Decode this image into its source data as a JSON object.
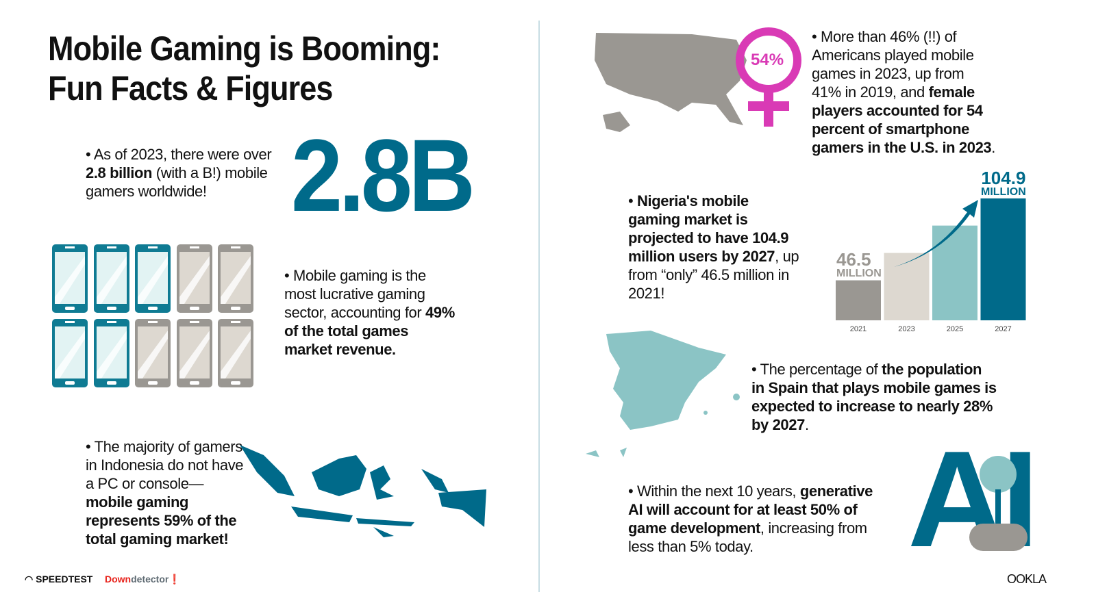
{
  "title": [
    "Mobile Gaming is Booming:",
    "Fun Facts & Figures"
  ],
  "big_number": "2.8B",
  "facts": {
    "gamers": {
      "bullet": "•",
      "pre": "As of 2023, there were over ",
      "bold": "2.8 billion",
      "post": " (with a B!) mobile gamers worldwide!"
    },
    "revenue": {
      "pre": "Mobile gaming is the most lucrative gaming sector, accounting for ",
      "bold": "49% of the total games market revenue."
    },
    "indonesia": {
      "pre": "The majority of gamers in Indonesia do not have a PC or console—",
      "bold": "mobile gaming represents 59% of the total gaming market!"
    },
    "us": {
      "pre": "More than 46% (!!) of Americans played mobile games in 2023, up from 41% in 2019, and ",
      "bold": "female players accounted for 54 percent of smartphone gamers in the U.S. in 2023",
      "post": "."
    },
    "nigeria": {
      "bold": "Nigeria's mobile gaming market is projected to have 104.9 million users by 2027",
      "post": ", up from “only” 46.5 million in 2021!"
    },
    "spain": {
      "pre": "The percentage of ",
      "bold": "the population in Spain that plays mobile games is expected to increase to nearly 28% by 2027",
      "post": "."
    },
    "ai": {
      "pre": "Within the next 10 years, ",
      "bold": "generative AI will account for at least 50% of game development",
      "post": ", increasing from less than 5% today."
    }
  },
  "phones": {
    "filled": 5,
    "total": 10,
    "note": "49%",
    "colors": {
      "filled": "#0f7b93",
      "empty": "#9a9792"
    }
  },
  "female_badge": "54%",
  "chart_data": {
    "type": "bar",
    "categories": [
      "2021",
      "2023",
      "2025",
      "2027"
    ],
    "values": [
      46.5,
      66,
      85.5,
      104.9
    ],
    "labels": {
      "first_value": "46.5",
      "first_unit": "MILLION",
      "last_value": "104.9",
      "last_unit": "MILLION"
    },
    "colors": [
      "#9a9792",
      "#ddd8d0",
      "#8bc4c5",
      "#006a8a"
    ],
    "grid": false
  },
  "ai_graphic": "AI",
  "logos": {
    "speedtest": "SPEEDTEST",
    "downdetector_a": "Down",
    "downdetector_b": "detector",
    "ookla": "OOKLA"
  },
  "colors": {
    "brand": "#006a8a",
    "teal": "#8bc4c5",
    "gray": "#9a9792",
    "magenta": "#d93ab5"
  }
}
